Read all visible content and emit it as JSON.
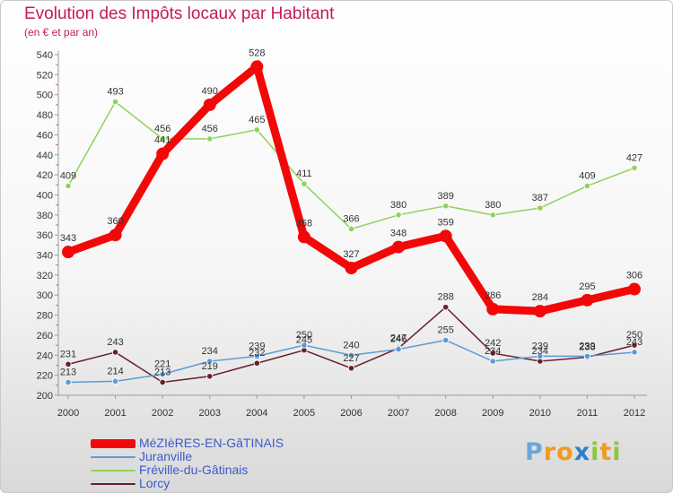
{
  "title": "Evolution des Impôts locaux par Habitant",
  "subtitle": "(en € et par an)",
  "chart_data": {
    "type": "line",
    "title": "Evolution des Impôts locaux par Habitant",
    "subtitle": "(en € et par an)",
    "xlabel": "",
    "ylabel": "",
    "ylim": [
      200,
      540
    ],
    "ytick_step": 20,
    "grid": false,
    "legend_position": "bottom-left",
    "x": [
      "2000",
      "2001",
      "2002",
      "2003",
      "2004",
      "2005",
      "2006",
      "2007",
      "2008",
      "2009",
      "2010",
      "2011",
      "2012"
    ],
    "series": [
      {
        "name": "MéZIèRES-EN-GâTINAIS",
        "color": "#f20808",
        "values": [
          343,
          360,
          441,
          490,
          528,
          358,
          327,
          348,
          359,
          286,
          284,
          295,
          306
        ],
        "point_labels": [
          "343",
          "360",
          "441",
          "490",
          "528",
          "358",
          "327",
          "348",
          "359",
          "286",
          "284",
          "295",
          "306"
        ]
      },
      {
        "name": "Juranville",
        "color": "#5b9bd5",
        "values": [
          213,
          214,
          221,
          234,
          239,
          250,
          240,
          246,
          255,
          234,
          239,
          239,
          243
        ],
        "point_labels": [
          "213",
          "214",
          "221",
          "234",
          "239",
          "250",
          "240",
          "246",
          "255",
          "234",
          "239",
          "239",
          "243"
        ]
      },
      {
        "name": "Fréville-du-Gâtinais",
        "color": "#8ed35a",
        "values": [
          409,
          493,
          456,
          456,
          465,
          411,
          366,
          380,
          389,
          380,
          387,
          409,
          427
        ],
        "point_labels": [
          "409",
          "493",
          "456",
          "456",
          "465",
          "411",
          "366",
          "380",
          "389",
          "380",
          "387",
          "409",
          "427"
        ]
      },
      {
        "name": "Lorcy",
        "color": "#6b1f2a",
        "values": [
          231,
          243,
          213,
          219,
          232,
          245,
          227,
          247,
          288,
          242,
          234,
          238,
          250
        ],
        "point_labels": [
          "231",
          "243",
          "213",
          "219",
          "232",
          "245",
          "227",
          "247",
          "288",
          "242",
          "234",
          "238",
          "250"
        ]
      }
    ]
  },
  "legend": [
    {
      "label": "MéZIèRES-EN-GâTINAIS",
      "color": "#f20808"
    },
    {
      "label": "Juranville",
      "color": "#5b9bd5"
    },
    {
      "label": "Fréville-du-Gâtinais",
      "color": "#8ed35a"
    },
    {
      "label": "Lorcy",
      "color": "#6b1f2a"
    }
  ],
  "logo": {
    "text": "Proxiti",
    "letters": [
      {
        "ch": "P",
        "color": "#6aa7dc"
      },
      {
        "ch": "r",
        "color": "#f29a1e"
      },
      {
        "ch": "o",
        "color": "#f29a1e"
      },
      {
        "ch": "x",
        "color": "#2e7ec9"
      },
      {
        "ch": "i",
        "color": "#8cc63f"
      },
      {
        "ch": "t",
        "color": "#f29a1e"
      },
      {
        "ch": "i",
        "color": "#8cc63f"
      }
    ]
  }
}
